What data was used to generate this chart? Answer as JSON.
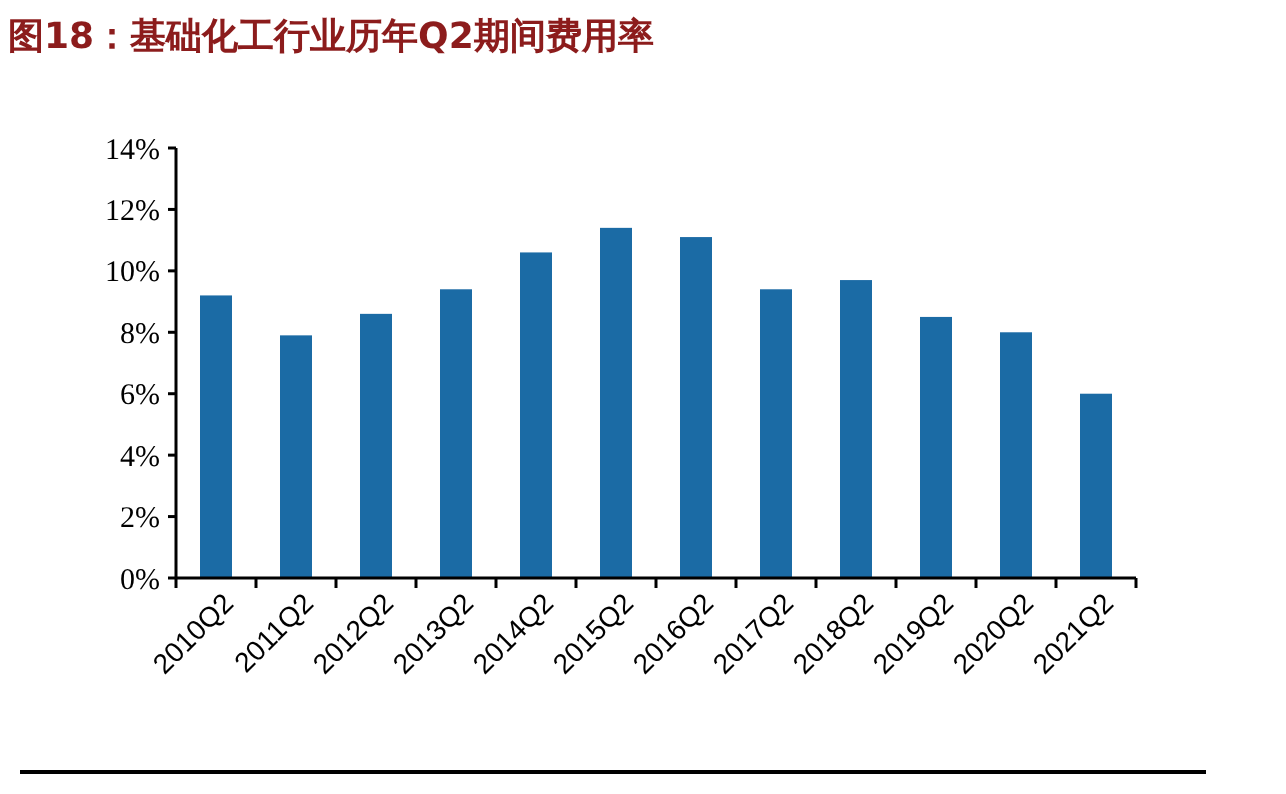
{
  "chart_data": {
    "type": "bar",
    "title": "图18：基础化工行业历年Q2期间费用率",
    "categories": [
      "2010Q2",
      "2011Q2",
      "2012Q2",
      "2013Q2",
      "2014Q2",
      "2015Q2",
      "2016Q2",
      "2017Q2",
      "2018Q2",
      "2019Q2",
      "2020Q2",
      "2021Q2"
    ],
    "values": [
      9.2,
      7.9,
      8.6,
      9.4,
      10.6,
      11.4,
      11.1,
      9.4,
      9.7,
      8.5,
      8.0,
      6.0
    ],
    "color": "#1b6ba5",
    "ylim": [
      0,
      14
    ],
    "yticks": [
      {
        "value": 0,
        "label": "0%"
      },
      {
        "value": 2,
        "label": "2%"
      },
      {
        "value": 4,
        "label": "4%"
      },
      {
        "value": 6,
        "label": "6%"
      },
      {
        "value": 8,
        "label": "8%"
      },
      {
        "value": 10,
        "label": "10%"
      },
      {
        "value": 12,
        "label": "12%"
      },
      {
        "value": 14,
        "label": "14%"
      }
    ],
    "grid": false
  }
}
